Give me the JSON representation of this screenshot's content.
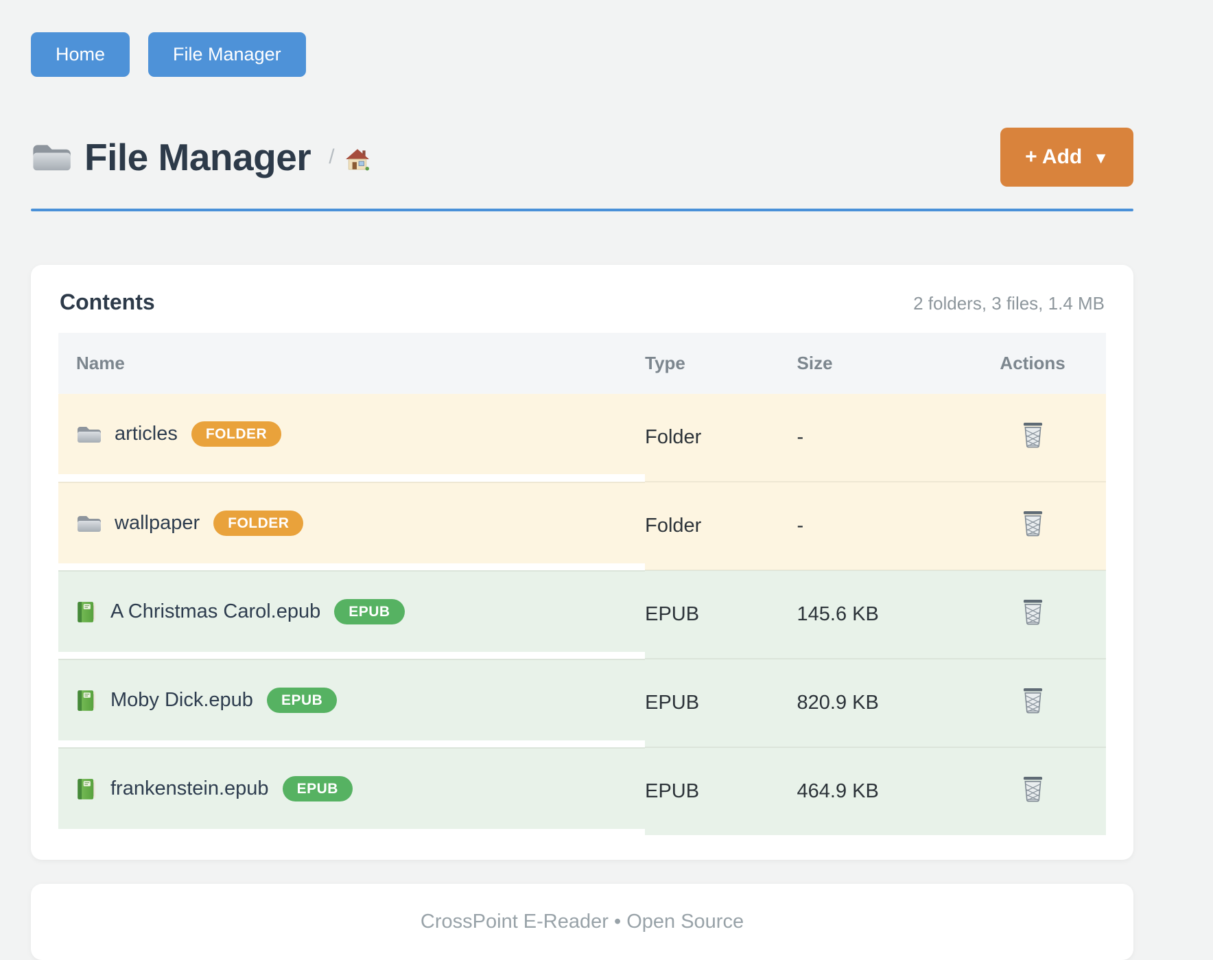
{
  "nav": {
    "home_label": "Home",
    "file_manager_label": "File Manager"
  },
  "header": {
    "title": "File Manager",
    "breadcrumb_separator": "/",
    "add_label": "+ Add",
    "add_caret": "▼"
  },
  "contents": {
    "heading": "Contents",
    "summary": "2 folders, 3 files, 1.4 MB",
    "columns": [
      "Name",
      "Type",
      "Size",
      "Actions"
    ],
    "rows": [
      {
        "name": "articles",
        "badge": "FOLDER",
        "type": "Folder",
        "size": "-",
        "kind": "folder"
      },
      {
        "name": "wallpaper",
        "badge": "FOLDER",
        "type": "Folder",
        "size": "-",
        "kind": "folder"
      },
      {
        "name": "A Christmas Carol.epub",
        "badge": "EPUB",
        "type": "EPUB",
        "size": "145.6 KB",
        "kind": "epub"
      },
      {
        "name": "Moby Dick.epub",
        "badge": "EPUB",
        "type": "EPUB",
        "size": "820.9 KB",
        "kind": "epub"
      },
      {
        "name": "frankenstein.epub",
        "badge": "EPUB",
        "type": "EPUB",
        "size": "464.9 KB",
        "kind": "epub"
      }
    ]
  },
  "footer": {
    "text": "CrossPoint E-Reader • Open Source"
  },
  "icons": {
    "title": "folder-icon",
    "breadcrumb": "home-icon",
    "folder_row": "folder-icon",
    "epub_row": "green-book-icon",
    "action": "trash-icon",
    "add_button": "caret-down-icon"
  },
  "colors": {
    "primary_blue": "#4e92d8",
    "accent_orange": "#d9833c",
    "badge_orange": "#e9a23b",
    "badge_green": "#56b262",
    "folder_row_bg": "#fdf5e1",
    "epub_row_bg": "#e8f2e9",
    "rule_blue": "#4a90d8",
    "page_bg": "#f2f3f3"
  }
}
